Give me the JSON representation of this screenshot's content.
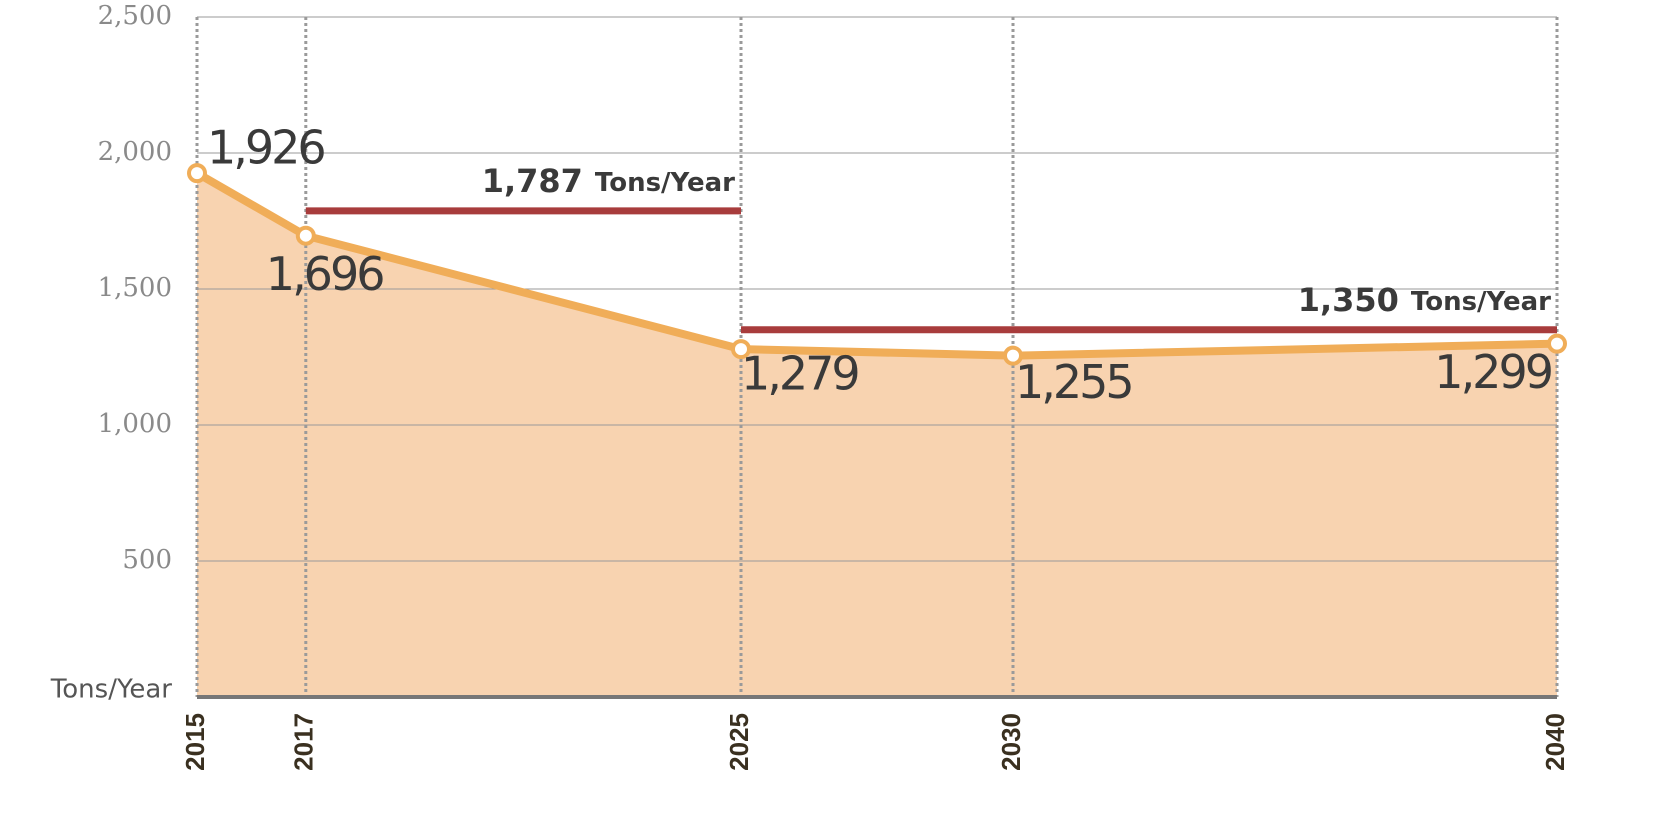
{
  "chart_data": {
    "type": "area",
    "y_label": "Tons/Year",
    "x": [
      2015,
      2017,
      2025,
      2030,
      2040
    ],
    "values": [
      1926,
      1696,
      1279,
      1255,
      1299
    ],
    "value_labels": [
      "1,926",
      "1,696",
      "1,279",
      "1,255",
      "1,299"
    ],
    "color": "#f0ad58",
    "fill_color": "#f8d3b0",
    "xlim": [
      2015,
      2040
    ],
    "xticks": [
      2015,
      2017,
      2025,
      2030,
      2040
    ],
    "ylim": [
      0,
      2500
    ],
    "yticks": [
      {
        "value": 500,
        "label": "500"
      },
      {
        "value": 1000,
        "label": "1,000"
      },
      {
        "value": 1500,
        "label": "1,500"
      },
      {
        "value": 2000,
        "label": "2,000"
      },
      {
        "value": 2500,
        "label": "2,500"
      }
    ],
    "grid": true,
    "references": [
      {
        "value": 1787,
        "label": "1,787",
        "unit": "Tons/Year",
        "x": [
          2017,
          2025
        ],
        "color": "#a83c3c"
      },
      {
        "value": 1350,
        "label": "1,350",
        "unit": "Tons/Year",
        "x": [
          2025,
          2040
        ],
        "color": "#a83c3c"
      }
    ]
  }
}
